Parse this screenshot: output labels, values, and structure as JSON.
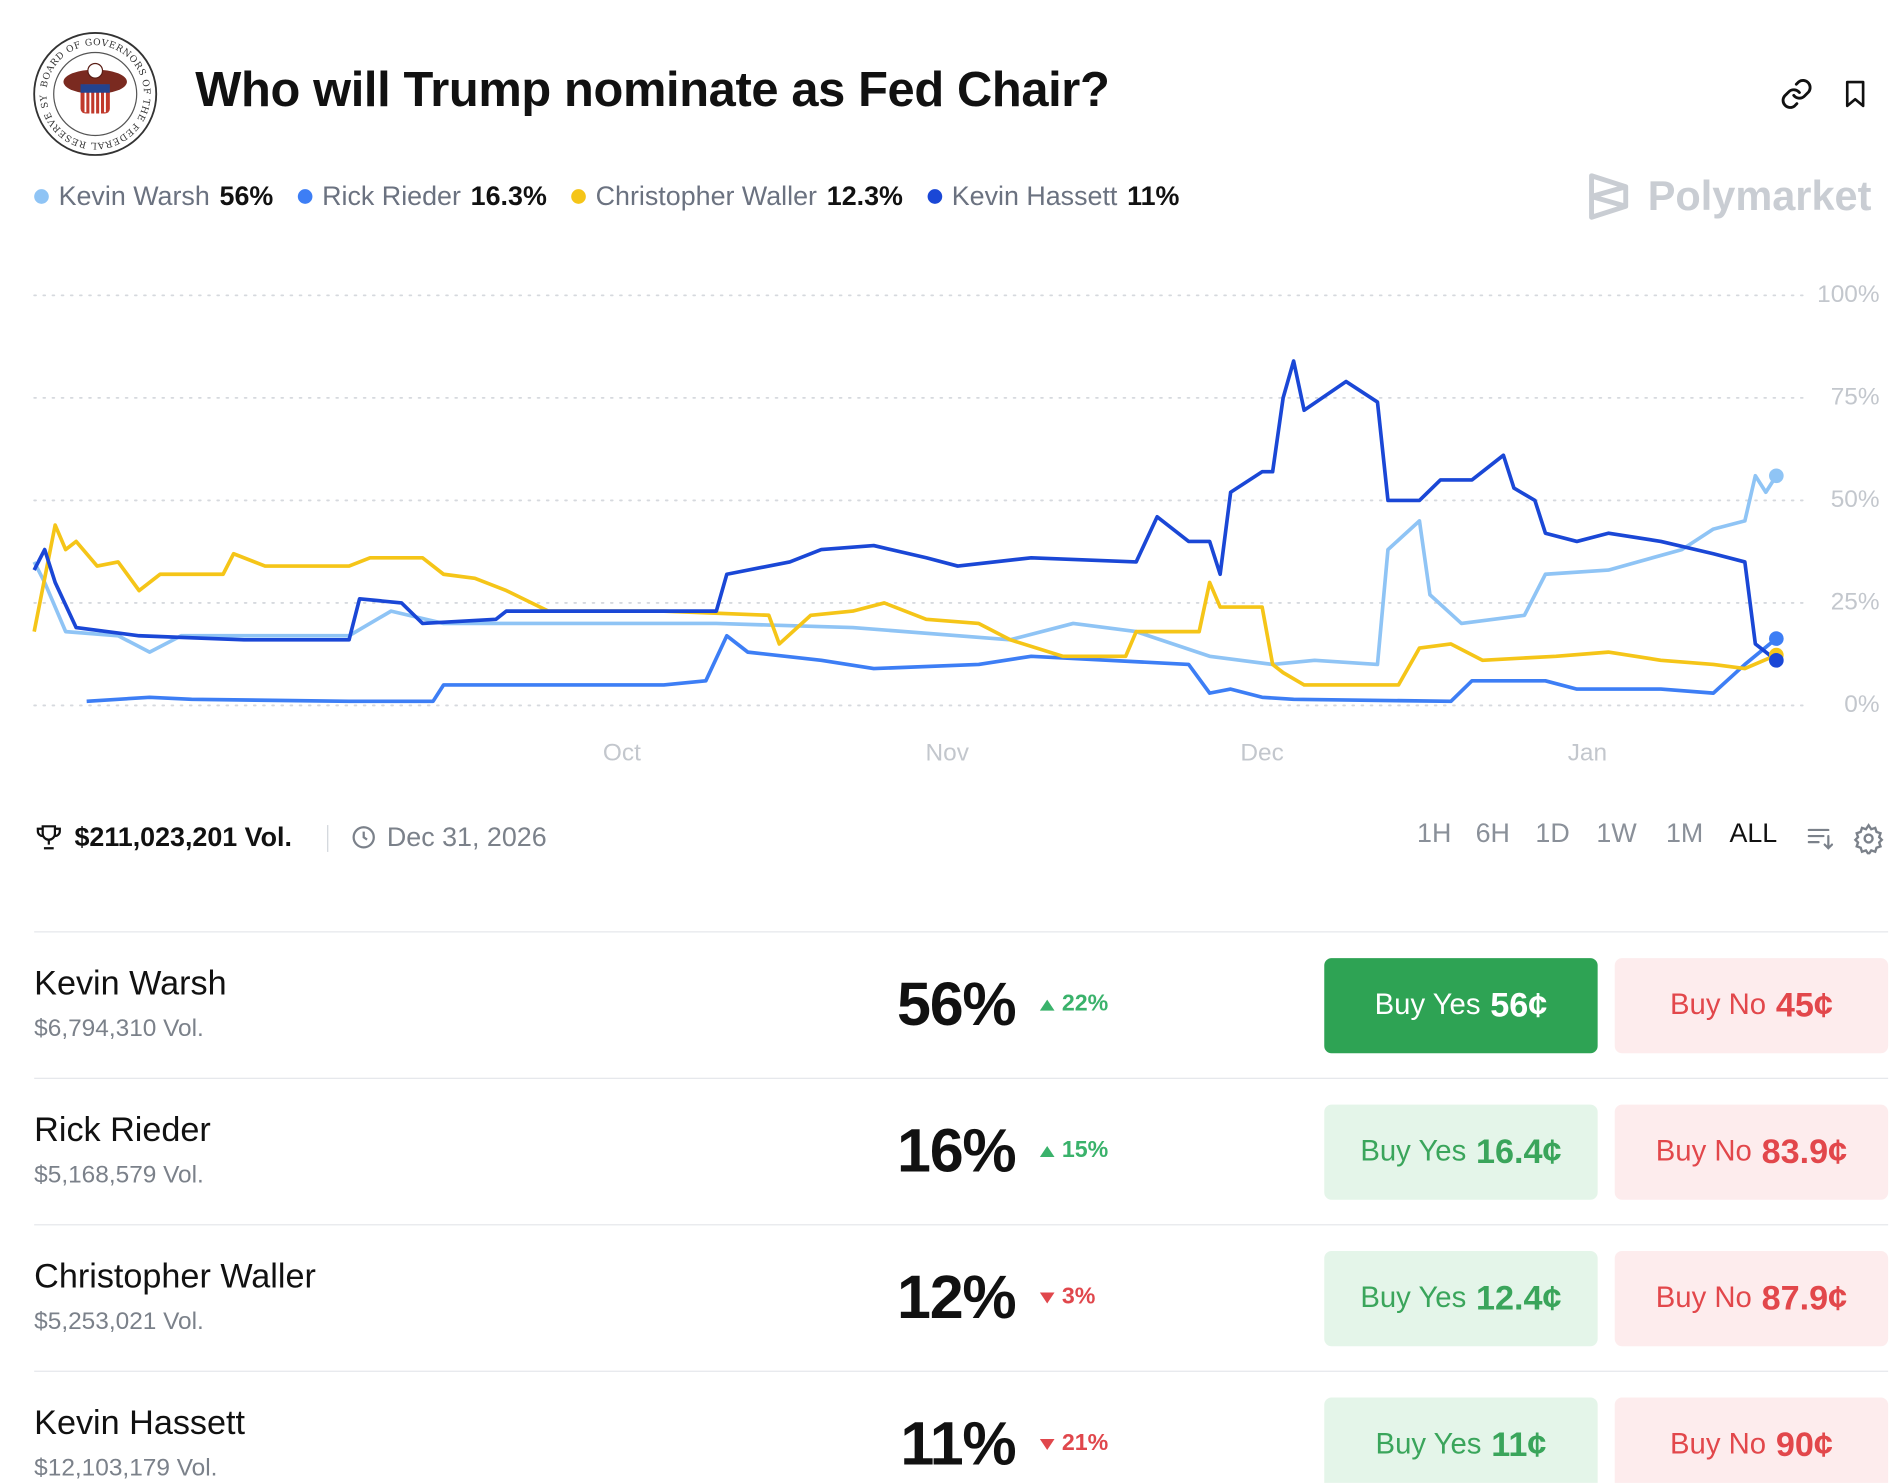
{
  "header": {
    "title": "Who will Trump nominate as Fed Chair?",
    "seal_text": "BOARD OF GOVERNORS OF THE FEDERAL RESERVE SYSTEM",
    "brand": "Polymarket"
  },
  "chart_data": {
    "type": "line",
    "grid": true,
    "xlim": [
      0,
      167
    ],
    "ylim": [
      0,
      100
    ],
    "xticks": [
      {
        "value": 56,
        "label": "Oct"
      },
      {
        "value": 87,
        "label": "Nov"
      },
      {
        "value": 117,
        "label": "Dec"
      },
      {
        "value": 148,
        "label": "Jan"
      }
    ],
    "yticks": [
      {
        "value": 0,
        "label": "0%"
      },
      {
        "value": 25,
        "label": "25%"
      },
      {
        "value": 50,
        "label": "50%"
      },
      {
        "value": 75,
        "label": "75%"
      },
      {
        "value": 100,
        "label": "100%"
      }
    ],
    "series": [
      {
        "name": "Kevin Warsh",
        "value_label": "56%",
        "color": "#8fc4f5",
        "x": [
          0,
          1,
          3,
          8,
          11,
          14,
          20,
          30,
          34,
          39,
          49,
          65,
          78,
          93,
          99,
          105,
          112,
          118,
          122,
          128,
          129,
          132,
          133,
          136,
          142,
          144,
          150,
          157,
          160,
          163,
          164,
          165,
          166
        ],
        "values": [
          35,
          30,
          18,
          17,
          13,
          17,
          17,
          17,
          23,
          20,
          20,
          20,
          19,
          16,
          20,
          18,
          12,
          10,
          11,
          10,
          38,
          45,
          27,
          20,
          22,
          32,
          33,
          38,
          43,
          45,
          56,
          52,
          56
        ]
      },
      {
        "name": "Rick Rieder",
        "value_label": "16.3%",
        "color": "#3d7ef5",
        "x": [
          5,
          11,
          15,
          30,
          38,
          39,
          45,
          60,
          64,
          66,
          68,
          75,
          80,
          90,
          95,
          110,
          112,
          114,
          117,
          120,
          135,
          137,
          144,
          147,
          155,
          160,
          163,
          166
        ],
        "values": [
          1,
          2,
          1.5,
          1,
          1,
          5,
          5,
          5,
          6,
          17,
          13,
          11,
          9,
          10,
          12,
          10,
          3,
          4,
          2,
          1.5,
          1,
          6,
          6,
          4,
          4,
          3,
          10,
          16.3
        ]
      },
      {
        "name": "Christopher Waller",
        "value_label": "12.3%",
        "color": "#f5c518",
        "x": [
          0,
          2,
          3,
          4,
          6,
          8,
          10,
          12,
          18,
          19,
          22,
          30,
          32,
          37,
          39,
          42,
          45,
          49,
          60,
          70,
          71,
          74,
          78,
          81,
          85,
          90,
          93,
          98,
          104,
          105,
          111,
          112,
          113,
          117,
          118,
          119,
          121,
          130,
          132,
          135,
          138,
          145,
          150,
          155,
          160,
          163,
          166
        ],
        "values": [
          18,
          44,
          38,
          40,
          34,
          35,
          28,
          32,
          32,
          37,
          34,
          34,
          36,
          36,
          32,
          31,
          28,
          23,
          23,
          22,
          15,
          22,
          23,
          25,
          21,
          20,
          16,
          12,
          12,
          18,
          18,
          30,
          24,
          24,
          10,
          8,
          5,
          5,
          14,
          15,
          11,
          12,
          13,
          11,
          10,
          9,
          12.3
        ]
      },
      {
        "name": "Kevin Hassett",
        "value_label": "11%",
        "color": "#1a47d6",
        "x": [
          0,
          1,
          2,
          4,
          10,
          20,
          30,
          31,
          35,
          37,
          44,
          45,
          65,
          66,
          72,
          75,
          80,
          85,
          88,
          95,
          105,
          107,
          110,
          112,
          113,
          114,
          117,
          118,
          119,
          120,
          121,
          125,
          128,
          129,
          132,
          134,
          137,
          140,
          141,
          143,
          144,
          147,
          150,
          155,
          160,
          163,
          164,
          166
        ],
        "values": [
          33,
          38,
          30,
          19,
          17,
          16,
          16,
          26,
          25,
          20,
          21,
          23,
          23,
          32,
          35,
          38,
          39,
          36,
          34,
          36,
          35,
          46,
          40,
          40,
          32,
          52,
          57,
          57,
          75,
          84,
          72,
          79,
          74,
          50,
          50,
          55,
          55,
          61,
          53,
          50,
          42,
          40,
          42,
          40,
          37,
          35,
          15,
          11
        ]
      }
    ]
  },
  "footer": {
    "volume": "$211,023,201 Vol.",
    "end_date": "Dec 31, 2026",
    "ranges": [
      "1H",
      "6H",
      "1D",
      "1W",
      "1M",
      "ALL"
    ],
    "active_range": "ALL"
  },
  "table": {
    "rows": [
      {
        "name": "Kevin Warsh",
        "volume": "$6,794,310 Vol.",
        "chance": "56%",
        "change": "22%",
        "direction": "up",
        "selected": true,
        "yes_label": "Buy Yes",
        "yes_price": "56¢",
        "no_label": "Buy No",
        "no_price": "45¢"
      },
      {
        "name": "Rick Rieder",
        "volume": "$5,168,579 Vol.",
        "chance": "16%",
        "change": "15%",
        "direction": "up",
        "selected": false,
        "yes_label": "Buy Yes",
        "yes_price": "16.4¢",
        "no_label": "Buy No",
        "no_price": "83.9¢"
      },
      {
        "name": "Christopher Waller",
        "volume": "$5,253,021 Vol.",
        "chance": "12%",
        "change": "3%",
        "direction": "down",
        "selected": false,
        "yes_label": "Buy Yes",
        "yes_price": "12.4¢",
        "no_label": "Buy No",
        "no_price": "87.9¢"
      },
      {
        "name": "Kevin Hassett",
        "volume": "$12,103,179 Vol.",
        "chance": "11%",
        "change": "21%",
        "direction": "down",
        "selected": false,
        "yes_label": "Buy Yes",
        "yes_price": "11¢",
        "no_label": "Buy No",
        "no_price": "90¢"
      }
    ]
  }
}
